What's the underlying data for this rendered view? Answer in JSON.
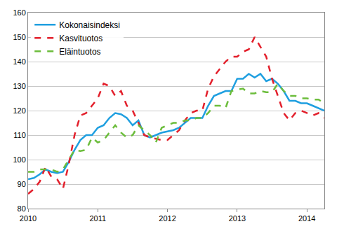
{
  "chart_data": {
    "type": "line",
    "categories": [
      "2010",
      null,
      null,
      null,
      null,
      null,
      null,
      null,
      null,
      null,
      null,
      null,
      "2011",
      null,
      null,
      null,
      null,
      null,
      null,
      null,
      null,
      null,
      null,
      null,
      "2012",
      null,
      null,
      null,
      null,
      null,
      null,
      null,
      null,
      null,
      null,
      null,
      "2013",
      null,
      null,
      null,
      null,
      null,
      null,
      null,
      null,
      null,
      null,
      null,
      "2014",
      null,
      null,
      null
    ],
    "series": [
      {
        "name": "Kokonaisindeksi",
        "color": "#1f9fe0",
        "line_style": "solid",
        "values": [
          92,
          92.5,
          94,
          96,
          95,
          94.5,
          95,
          99,
          104,
          108,
          110,
          110,
          113,
          114,
          117,
          119,
          118.5,
          117,
          114,
          116,
          110,
          109,
          110,
          111,
          111.5,
          112,
          113,
          115,
          117,
          117,
          117,
          122,
          126,
          127,
          128,
          128,
          133,
          133,
          135,
          133.5,
          135,
          132,
          133,
          131,
          128,
          124,
          124,
          123,
          123,
          122,
          121,
          120
        ]
      },
      {
        "name": "Kasvituotos",
        "color": "#e3202c",
        "line_style": "dash",
        "values": [
          86,
          88,
          91,
          97,
          93,
          92,
          88,
          98,
          110,
          118,
          119,
          122,
          125,
          131,
          130,
          126,
          128,
          122,
          120,
          115,
          110,
          109,
          108.5,
          108,
          108,
          110,
          112,
          116,
          119,
          120,
          120,
          129,
          134,
          137,
          140,
          142,
          142,
          144,
          145,
          150,
          146,
          142,
          133,
          126,
          119,
          116,
          119,
          120,
          119,
          118,
          119,
          117
        ]
      },
      {
        "name": "Eläintuotos",
        "color": "#6cbd3c",
        "line_style": "dash",
        "values": [
          95,
          95,
          96,
          96,
          96,
          95,
          96,
          100,
          104,
          103.5,
          104,
          109,
          107,
          108,
          111,
          114,
          111,
          109,
          110,
          114,
          112,
          110,
          107,
          113,
          114,
          115,
          115,
          116,
          116,
          117,
          117,
          119,
          122,
          122,
          121,
          128,
          128.5,
          129,
          127,
          127,
          128,
          127.5,
          127.5,
          131,
          128,
          126,
          126,
          125,
          125,
          124.5,
          124.5,
          123
        ]
      }
    ],
    "ylim": [
      80,
      160
    ],
    "yticks": [
      80,
      90,
      100,
      110,
      120,
      130,
      140,
      150,
      160
    ],
    "grid": true,
    "legend": "top-left"
  }
}
